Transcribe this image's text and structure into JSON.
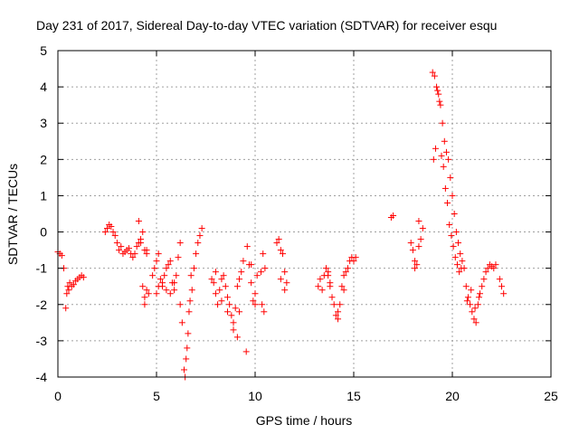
{
  "chart_data": {
    "type": "scatter",
    "title": "Day 231 of 2017, Sidereal Day-to-day VTEC variation (SDTVAR) for receiver esqu",
    "xlabel": "GPS time / hours",
    "ylabel": "SDTVAR / TECUs",
    "xlim": [
      0,
      25
    ],
    "ylim": [
      -4,
      5
    ],
    "xticks": [
      "0",
      "5",
      "10",
      "15",
      "20",
      "25"
    ],
    "yticks": [
      "-4",
      "-3",
      "-2",
      "-1",
      "0",
      "1",
      "2",
      "3",
      "4",
      "5"
    ],
    "grid": true,
    "marker": "+",
    "color": "#ff0000",
    "series": [
      {
        "name": "SDTVAR",
        "x": [
          0.0,
          0.1,
          0.2,
          0.3,
          0.4,
          0.45,
          0.5,
          0.55,
          0.6,
          0.7,
          0.8,
          0.9,
          1.0,
          1.1,
          1.2,
          1.3,
          2.4,
          2.5,
          2.6,
          2.7,
          2.8,
          2.9,
          3.0,
          3.1,
          3.2,
          3.3,
          3.4,
          3.5,
          3.6,
          3.7,
          3.8,
          3.9,
          4.0,
          4.1,
          4.2,
          4.3,
          4.4,
          4.5,
          4.1,
          4.2,
          4.3,
          4.4,
          4.5,
          4.6,
          4.4,
          4.5,
          4.8,
          4.9,
          5.0,
          5.1,
          5.2,
          5.3,
          5.4,
          5.5,
          5.6,
          5.7,
          5.8,
          5.9,
          6.0,
          6.1,
          6.2,
          5.0,
          5.1,
          5.3,
          5.5,
          5.7,
          5.9,
          6.2,
          6.3,
          6.4,
          6.5,
          6.6,
          6.7,
          6.8,
          6.9,
          7.0,
          7.1,
          7.2,
          7.3,
          6.45,
          6.55,
          6.65,
          6.75,
          7.8,
          7.9,
          8.0,
          8.1,
          8.2,
          8.3,
          8.4,
          8.5,
          8.6,
          8.7,
          8.8,
          8.9,
          9.0,
          9.1,
          9.2,
          9.3,
          9.4,
          8.0,
          8.3,
          8.6,
          8.9,
          9.1,
          9.2,
          9.6,
          9.7,
          9.8,
          9.9,
          10.0,
          10.1,
          9.55,
          9.8,
          10.0,
          10.3,
          10.4,
          10.5,
          10.35,
          10.45,
          11.1,
          11.2,
          11.3,
          11.4,
          11.5,
          11.6,
          11.3,
          11.5,
          13.2,
          13.3,
          13.4,
          13.5,
          13.6,
          13.7,
          13.8,
          13.9,
          14.0,
          14.1,
          14.2,
          14.3,
          14.4,
          14.5,
          14.6,
          14.7,
          14.8,
          14.9,
          15.0,
          15.1,
          13.7,
          13.8,
          14.2,
          14.5,
          16.9,
          17.0,
          17.9,
          18.0,
          18.1,
          18.2,
          18.3,
          18.4,
          18.5,
          18.1,
          18.3,
          19.0,
          19.1,
          19.2,
          19.3,
          19.4,
          19.5,
          19.6,
          19.7,
          19.8,
          19.9,
          20.0,
          20.1,
          20.2,
          20.3,
          20.4,
          20.5,
          20.6,
          19.05,
          19.15,
          19.25,
          19.35,
          19.45,
          19.55,
          19.65,
          19.75,
          19.85,
          19.95,
          20.05,
          20.15,
          20.25,
          20.35,
          20.45,
          20.7,
          20.8,
          20.9,
          21.0,
          21.1,
          21.2,
          21.3,
          21.4,
          21.5,
          21.6,
          21.7,
          21.8,
          21.9,
          22.0,
          22.1,
          22.2,
          20.75,
          20.95,
          21.15,
          21.35,
          22.4,
          22.5,
          22.6
        ],
        "y": [
          -0.55,
          -0.6,
          -0.65,
          -1.0,
          -2.1,
          -1.7,
          -1.5,
          -1.6,
          -1.4,
          -1.5,
          -1.45,
          -1.35,
          -1.3,
          -1.25,
          -1.2,
          -1.25,
          0.0,
          0.1,
          0.2,
          0.15,
          0.0,
          -0.1,
          -0.3,
          -0.5,
          -0.4,
          -0.6,
          -0.55,
          -0.5,
          -0.45,
          -0.6,
          -0.7,
          -0.6,
          -0.4,
          -0.3,
          -0.2,
          0.0,
          -0.5,
          -0.6,
          0.3,
          -0.3,
          -1.5,
          -1.8,
          -1.6,
          -1.7,
          -2.0,
          -0.5,
          -1.2,
          -1.0,
          -0.8,
          -0.6,
          -1.3,
          -1.5,
          -1.2,
          -1.0,
          -0.9,
          -0.8,
          -1.4,
          -1.6,
          -1.2,
          -0.7,
          -0.3,
          -1.7,
          -1.5,
          -1.4,
          -1.6,
          -1.7,
          -1.4,
          -2.0,
          -2.5,
          -3.8,
          -3.5,
          -2.8,
          -1.9,
          -1.6,
          -1.0,
          -0.6,
          -0.3,
          -0.1,
          0.1,
          -4.0,
          -3.2,
          -2.2,
          -1.2,
          -1.3,
          -1.4,
          -1.7,
          -2.0,
          -1.6,
          -1.3,
          -1.2,
          -1.5,
          -1.8,
          -2.0,
          -2.3,
          -2.7,
          -2.1,
          -1.5,
          -1.3,
          -1.1,
          -0.8,
          -1.1,
          -1.9,
          -2.2,
          -2.5,
          -2.9,
          -2.2,
          -0.4,
          -0.9,
          -1.4,
          -1.9,
          -1.7,
          -1.2,
          -3.3,
          -0.9,
          -2.0,
          -1.1,
          -0.6,
          -1.0,
          -2.0,
          -2.2,
          -0.3,
          -0.2,
          -0.5,
          -0.6,
          -1.1,
          -1.4,
          -1.3,
          -1.6,
          -1.5,
          -1.3,
          -1.6,
          -1.2,
          -1.0,
          -1.2,
          -1.5,
          -1.8,
          -2.0,
          -2.3,
          -2.2,
          -2.0,
          -1.5,
          -1.2,
          -1.1,
          -1.0,
          -0.8,
          -0.7,
          -0.8,
          -0.7,
          -1.1,
          -1.4,
          -2.4,
          -1.6,
          0.4,
          0.45,
          -0.3,
          -0.5,
          -0.8,
          -0.9,
          -0.4,
          -0.2,
          0.1,
          -1.0,
          0.3,
          4.4,
          4.3,
          4.0,
          3.8,
          3.5,
          3.0,
          2.5,
          2.2,
          2.0,
          1.5,
          1.0,
          0.5,
          0.0,
          -0.3,
          -0.6,
          -0.8,
          -1.0,
          2.0,
          2.3,
          3.9,
          3.6,
          2.1,
          1.8,
          1.2,
          0.8,
          0.2,
          -0.1,
          -0.4,
          -0.7,
          -0.9,
          -1.1,
          -1.0,
          -1.5,
          -1.8,
          -2.0,
          -2.2,
          -2.4,
          -2.5,
          -2.0,
          -1.7,
          -1.5,
          -1.3,
          -1.1,
          -1.0,
          -0.9,
          -0.95,
          -1.0,
          -0.9,
          -1.9,
          -1.6,
          -2.1,
          -1.8,
          -1.3,
          -1.5,
          -1.7
        ]
      }
    ]
  }
}
